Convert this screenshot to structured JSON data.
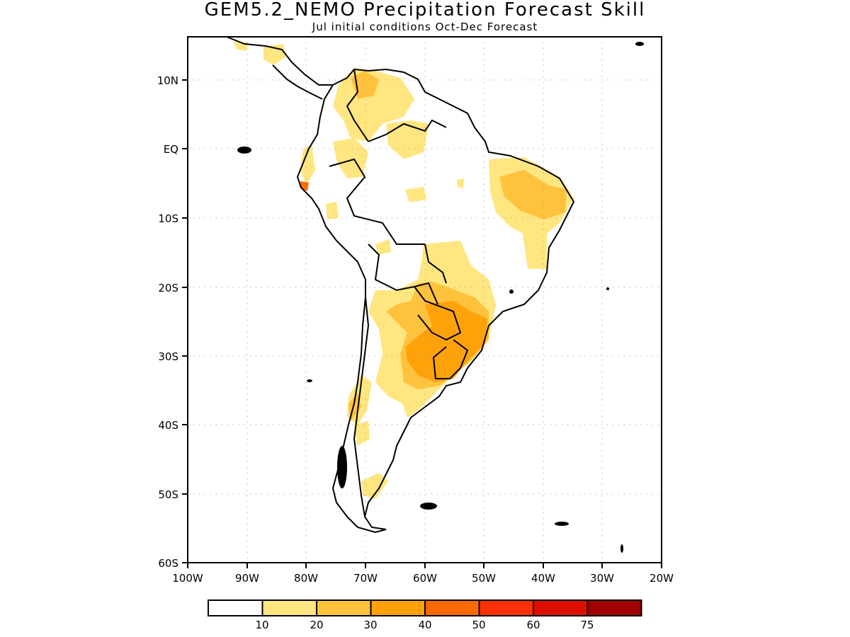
{
  "map": {
    "title": "GEM5.2_NEMO Precipitation Forecast Skill",
    "subtitle": "Jul initial conditions   Oct-Dec Forecast",
    "lon_ticks": [
      "100W",
      "90W",
      "80W",
      "70W",
      "60W",
      "50W",
      "40W",
      "30W",
      "20W"
    ],
    "lat_ticks": [
      "10N",
      "EQ",
      "10S",
      "20S",
      "30S",
      "40S",
      "50S",
      "60S"
    ],
    "lon_range": [
      -100,
      -20
    ],
    "lat_range": [
      -60,
      15
    ],
    "grid": true
  },
  "legend": {
    "labels": [
      "10",
      "20",
      "30",
      "40",
      "50",
      "60",
      "75"
    ],
    "colors": [
      "#ffffff",
      "#ffe680",
      "#ffc23d",
      "#ffa20a",
      "#ff6a00",
      "#ff3000",
      "#dd1000",
      "#a00000"
    ]
  }
}
